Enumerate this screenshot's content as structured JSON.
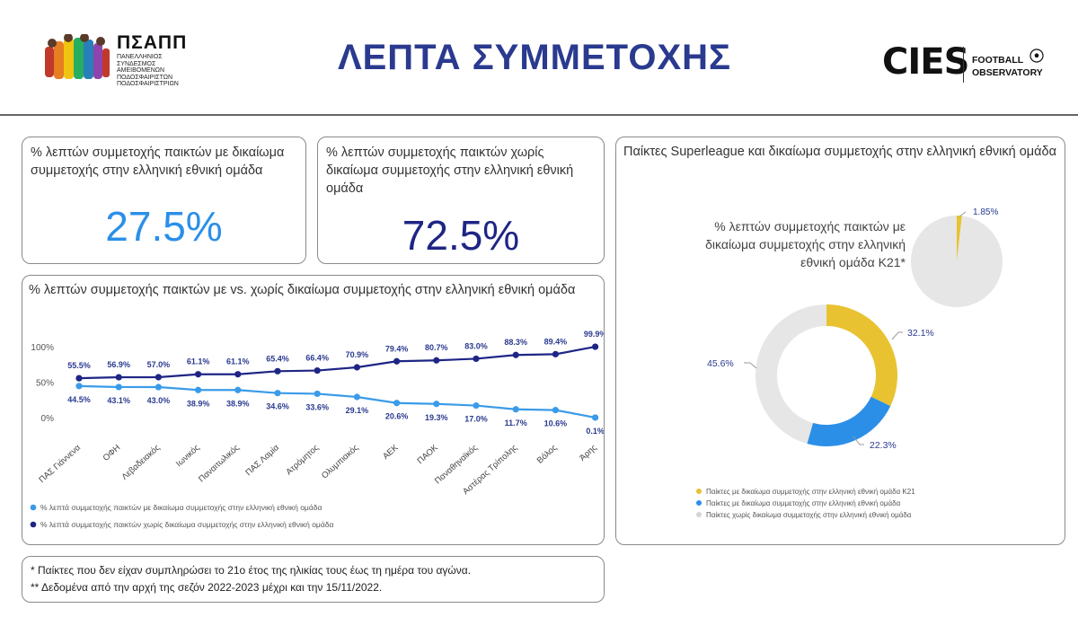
{
  "header": {
    "title": "ΛΕΠΤΑ ΣΥΜΜΕΤΟΧΗΣ",
    "psapp_name": "ΠΣΑΠΠ",
    "psapp_subtitle": "ΠΑΝΕΛΛΗΝΙΟΣ ΣΥΝΔΕΣΜΟΣ ΑΜΕΙΒΟΜΕΝΩΝ ΠΟΔΟΣΦΑΙΡΙΣΤΩΝ ΠΟΔΟΣΦΑΙΡΙΣΤΡΙΩΝ",
    "cies_name": "CIES",
    "cies_sub_line1": "FOOTBALL",
    "cies_sub_line2": "OBSERVATORY"
  },
  "kpi1": {
    "title": "% λεπτών συμμετοχής παικτών με δικαίωμα συμμετοχής στην ελληνική εθνική ομάδα",
    "value": "27.5%"
  },
  "kpi2": {
    "title": "% λεπτών συμμετοχής παικτών χωρίς δικαίωμα συμμετοχής στην ελληνική εθνική ομάδα",
    "value": "72.5%"
  },
  "line_card": {
    "title": "% λεπτών συμμετοχής παικτών με vs. χωρίς δικαίωμα συμμετοχής στην ελληνική εθνική ομάδα"
  },
  "pie_card": {
    "title": "Παίκτες Superleague και δικαίωμα συμμετοχής στην ελληνική εθνική ομάδα",
    "small_pie_label": "% λεπτών συμμετοχής παικτών με δικαίωμα συμμετοχής στην ελληνική εθνική ομάδα Κ21*"
  },
  "notes": {
    "line1": "* Παίκτες που δεν είχαν συμπληρώσει το 21ο έτος της ηλικίας τους έως τη ημέρα του αγώνα.",
    "line2": "** Δεδομένα από την αρχή της σεζόν 2022-2023 μέχρι και την 15/11/2022."
  },
  "colors": {
    "navy": "#1e2585",
    "light_blue": "#3a9be8",
    "yellow": "#e8c231",
    "blue": "#2b8fe8",
    "grey": "#e6e6e6"
  },
  "chart_data": [
    {
      "type": "line",
      "categories": [
        "ΠΑΣ Γιάννενα",
        "ΟΦΗ",
        "Λεβαδειακός",
        "Ιωνικός",
        "Παναιτωλικός",
        "ΠΑΣ Λαμία",
        "Ατρόμητος",
        "Ολυμπιακός",
        "ΑΕΚ",
        "ΠΑΟΚ",
        "Παναθηναϊκός",
        "Αστέρας Τρίπολης",
        "Βόλος",
        "Άρης"
      ],
      "yticks": [
        "0%",
        "50%",
        "100%"
      ],
      "ylim": [
        0,
        100
      ],
      "series": [
        {
          "name": "% λεπτά συμμετοχής παικτών με δικαίωμα συμμετοχής στην ελληνική εθνική ομάδα",
          "color": "#3a9be8",
          "values": [
            44.5,
            43.1,
            43.0,
            38.9,
            38.9,
            34.6,
            33.6,
            29.1,
            20.6,
            19.3,
            17.0,
            11.7,
            10.6,
            0.1
          ],
          "labels": [
            "44.5%",
            "43.1%",
            "43.0%",
            "38.9%",
            "38.9%",
            "34.6%",
            "33.6%",
            "29.1%",
            "20.6%",
            "19.3%",
            "17.0%",
            "11.7%",
            "10.6%",
            "0.1%"
          ]
        },
        {
          "name": "% λεπτά συμμετοχής παικτών χωρίς δικαίωμα συμμετοχής στην ελληνική εθνική ομάδα",
          "color": "#1e2585",
          "values": [
            55.5,
            56.9,
            57.0,
            61.1,
            61.1,
            65.4,
            66.4,
            70.9,
            79.4,
            80.7,
            83.0,
            88.3,
            89.4,
            99.9
          ],
          "labels": [
            "55.5%",
            "56.9%",
            "57.0%",
            "61.1%",
            "61.1%",
            "65.4%",
            "66.4%",
            "70.9%",
            "79.4%",
            "80.7%",
            "83.0%",
            "88.3%",
            "89.4%",
            "99.9%"
          ]
        }
      ]
    },
    {
      "type": "pie",
      "categories": [
        "K21",
        "other"
      ],
      "values": [
        1.85,
        98.15
      ],
      "labels": [
        "1.85%",
        ""
      ],
      "colors": [
        "#e8c231",
        "#e6e6e6"
      ]
    },
    {
      "type": "pie",
      "donut": true,
      "categories": [
        "Παίκτες με δικαίωμα συμμετοχής στην ελληνική εθνική ομάδα Κ21",
        "Παίκτες με δικαίωμα συμμετοχής στην ελληνική εθνική ομάδα",
        "Παίκτες χωρίς δικαίωμα συμμετοχής στην ελληνική εθνική ομάδα"
      ],
      "values": [
        32.1,
        22.3,
        45.6
      ],
      "labels": [
        "32.1%",
        "22.3%",
        "45.6%"
      ],
      "colors": [
        "#e8c231",
        "#2b8fe8",
        "#e6e6e6"
      ]
    }
  ]
}
